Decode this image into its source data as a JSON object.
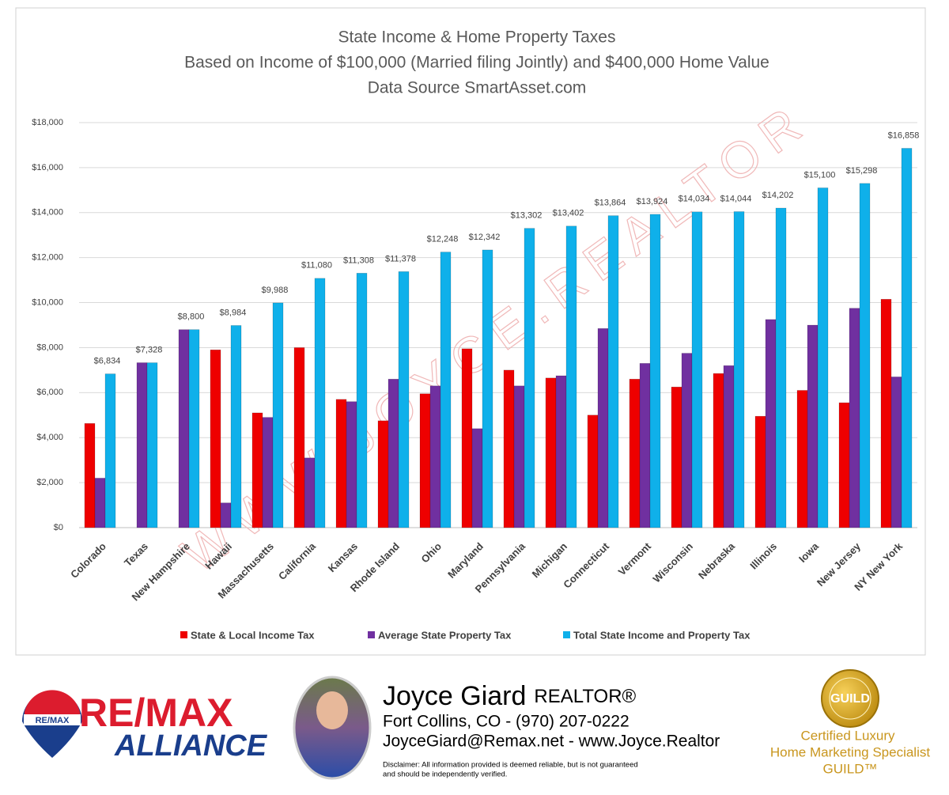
{
  "chart_data": {
    "type": "bar",
    "title": [
      "State Income & Home Property Taxes",
      "Based on Income of $100,000 (Married filing Jointly) and $400,000 Home Value",
      "Data Source SmartAsset.com"
    ],
    "watermark": "WWW.JOYCE.REALTOR",
    "categories": [
      "Colorado",
      "Texas",
      "New Hampshire",
      "Hawaii",
      "Massachusetts",
      "California",
      "Kansas",
      "Rhode Island",
      "Ohio",
      "Maryland",
      "Pennsylvania",
      "Michigan",
      "Connecticut",
      "Vermont",
      "Wisconsin",
      "Nebraska",
      "Illinois",
      "Iowa",
      "New Jersey",
      "NY New York"
    ],
    "series": [
      {
        "name": "State & Local  Income Tax",
        "color": "#ee0000",
        "values": [
          4630,
          0,
          0,
          7900,
          5100,
          8000,
          5700,
          4750,
          5950,
          7950,
          7000,
          6650,
          5000,
          6600,
          6250,
          6850,
          4950,
          6100,
          5550,
          10150
        ]
      },
      {
        "name": "Average State Property Tax",
        "color": "#7030a0",
        "values": [
          2200,
          7330,
          8800,
          1100,
          4900,
          3100,
          5600,
          6600,
          6300,
          4400,
          6300,
          6750,
          8850,
          7300,
          7750,
          7200,
          9250,
          9000,
          9750,
          6700
        ]
      },
      {
        "name": "Total State Income and Property Tax",
        "color": "#0fb0ea",
        "values": [
          6834,
          7328,
          8800,
          8984,
          9988,
          11080,
          11308,
          11378,
          12248,
          12342,
          13302,
          13402,
          13864,
          13924,
          14034,
          14044,
          14202,
          15100,
          15298,
          16858
        ],
        "value_labels": [
          "$6,834",
          "$7,328",
          "$8,800",
          "$8,984",
          "$9,988",
          "$11,080",
          "$11,308",
          "$11,378",
          "$12,248",
          "$12,342",
          "$13,302",
          "$13,402",
          "$13,864",
          "$13,924",
          "$14,034",
          "$14,044",
          "$14,202",
          "$15,100",
          "$15,298",
          "$16,858"
        ]
      }
    ],
    "ylim": [
      0,
      18000
    ],
    "yticks": [
      {
        "value": 0,
        "label": "$0"
      },
      {
        "value": 2000,
        "label": "$2,000"
      },
      {
        "value": 4000,
        "label": "$4,000"
      },
      {
        "value": 6000,
        "label": "$6,000"
      },
      {
        "value": 8000,
        "label": "$8,000"
      },
      {
        "value": 10000,
        "label": "$10,000"
      },
      {
        "value": 12000,
        "label": "$12,000"
      },
      {
        "value": 14000,
        "label": "$14,000"
      },
      {
        "value": 16000,
        "label": "$16,000"
      },
      {
        "value": 18000,
        "label": "$18,000"
      }
    ],
    "grid": true,
    "legend": "bottom"
  },
  "footer": {
    "remax": {
      "balloon": "RE/MAX",
      "brand": "RE/MAX",
      "office": "ALLIANCE"
    },
    "agent": {
      "name": "Joyce Giard",
      "title": "REALTOR®",
      "location": "Fort Collins, CO - (970) 207-0222",
      "contact": "JoyceGiard@Remax.net - www.Joyce.Realtor",
      "disclaimer": [
        "Disclaimer: All information provided is deemed reliable, but is not guaranteed",
        "and should be independently verified."
      ]
    },
    "guild": {
      "seal": "GUILD",
      "lines": [
        "Certified Luxury",
        "Home Marketing Specialist",
        "GUILD™"
      ]
    }
  }
}
